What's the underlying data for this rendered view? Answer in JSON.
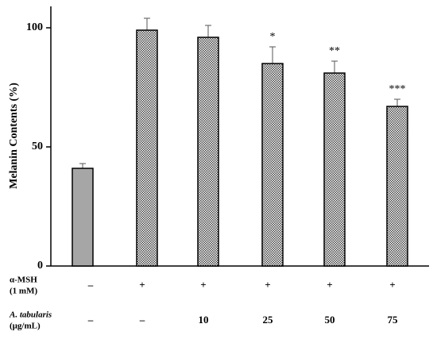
{
  "chart_data": {
    "type": "bar",
    "y_label": "Melanin Contents (%)",
    "values": [
      41,
      99,
      96,
      85,
      81,
      67
    ],
    "errors": [
      2,
      5,
      5,
      7,
      5,
      3
    ],
    "significance": [
      null,
      null,
      null,
      "*",
      "**",
      "***"
    ],
    "bar_styles": [
      "solid",
      "checkered",
      "checkered",
      "checkered",
      "checkered",
      "checkered"
    ],
    "color": "#a6a6a6",
    "ylim": [
      0,
      109
    ],
    "yticks": [
      0,
      50,
      100
    ],
    "rows": [
      {
        "label": [
          "α-MSH",
          "(1 mM)"
        ],
        "cells": [
          "–",
          "+",
          "+",
          "+",
          "+",
          "+"
        ]
      },
      {
        "label": [
          "A. tabularis",
          "(μg/mL)"
        ],
        "cells": [
          "–",
          "–",
          "10",
          "25",
          "50",
          "75"
        ]
      }
    ]
  }
}
